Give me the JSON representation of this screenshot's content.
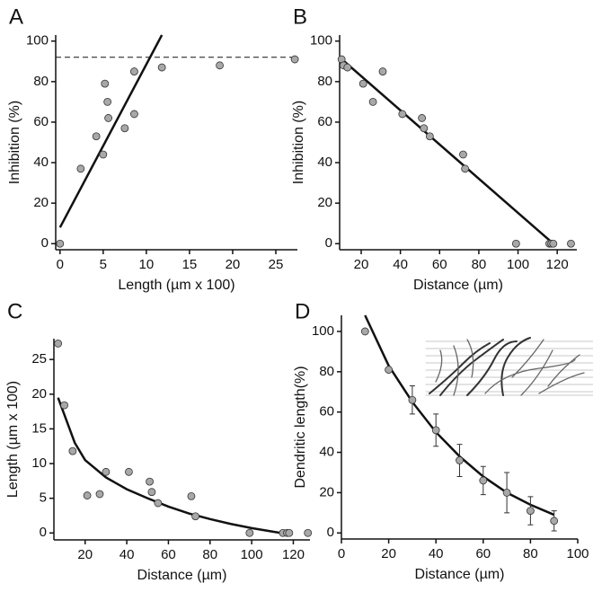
{
  "chart_data": [
    {
      "type": "scatter",
      "label": "A",
      "xlabel": "Length (µm x 100)",
      "ylabel": "Inhibition (%)",
      "xlim": [
        -0.5,
        27.5
      ],
      "xticks": [
        0,
        5,
        10,
        15,
        20,
        25
      ],
      "ylim": [
        -3,
        103
      ],
      "yticks": [
        0,
        20,
        40,
        60,
        80,
        100
      ],
      "color": "#a8a8a8",
      "hline": 92,
      "points": {
        "x": [
          0,
          2.4,
          4.2,
          5.0,
          5.2,
          5.5,
          5.6,
          7.5,
          8.6,
          8.6,
          11.8,
          18.5,
          27.2
        ],
        "y": [
          0,
          37,
          53,
          44,
          79,
          70,
          62,
          57,
          85,
          64,
          87,
          88,
          91
        ]
      },
      "fit": {
        "x": [
          0,
          11.8
        ],
        "y": [
          8,
          103
        ]
      }
    },
    {
      "type": "scatter",
      "label": "B",
      "xlabel": "Distance (µm)",
      "ylabel": "Inhibition (%)",
      "xlim": [
        9,
        130
      ],
      "xticks": [
        20,
        40,
        60,
        80,
        100,
        120
      ],
      "ylim": [
        -3,
        103
      ],
      "yticks": [
        0,
        20,
        40,
        60,
        80,
        100
      ],
      "color": "#a8a8a8",
      "points": {
        "x": [
          10,
          11,
          13,
          21,
          26,
          31,
          41,
          51,
          52,
          55,
          72,
          73,
          99,
          116,
          117,
          118,
          127
        ],
        "y": [
          91,
          88,
          87,
          79,
          70,
          85,
          64,
          62,
          57,
          53,
          44,
          37,
          0,
          0,
          0,
          0,
          0
        ]
      },
      "fit": {
        "x": [
          9,
          118
        ],
        "y": [
          92,
          0
        ]
      }
    },
    {
      "type": "scatter",
      "label": "C",
      "xlabel": "Distance (µm)",
      "ylabel": "Length (µm x 100)",
      "xlim": [
        5,
        128
      ],
      "xticks": [
        20,
        40,
        60,
        80,
        100,
        120
      ],
      "ylim": [
        -1,
        28
      ],
      "yticks": [
        0,
        5,
        10,
        15,
        20,
        25
      ],
      "color": "#a8a8a8",
      "points": {
        "x": [
          7,
          10,
          14,
          21,
          27,
          30,
          41,
          51,
          52,
          55,
          71,
          73,
          99,
          115,
          117,
          118,
          127
        ],
        "y": [
          27.3,
          18.4,
          11.8,
          5.4,
          5.6,
          8.8,
          8.8,
          7.4,
          5.9,
          4.3,
          5.3,
          2.4,
          0,
          0,
          0,
          0,
          0
        ]
      },
      "fit": {
        "x": [
          7,
          15,
          20,
          30,
          40,
          50,
          60,
          70,
          80,
          90,
          100,
          110,
          118
        ],
        "y": [
          19.5,
          13,
          10.5,
          8,
          6.3,
          5,
          3.8,
          2.8,
          2,
          1.3,
          0.7,
          0.2,
          -0.2
        ]
      }
    },
    {
      "type": "scatter",
      "label": "D",
      "xlabel": "Distance (µm)",
      "ylabel": "Dendritic length(%)",
      "xlim": [
        0,
        100
      ],
      "xticks": [
        0,
        20,
        40,
        60,
        80,
        100
      ],
      "ylim": [
        -3,
        108
      ],
      "yticks": [
        0,
        20,
        40,
        60,
        80,
        100
      ],
      "color": "#a8a8a8",
      "points": {
        "x": [
          10,
          20,
          30,
          40,
          50,
          60,
          70,
          80,
          90
        ],
        "y": [
          100,
          81,
          66,
          51,
          36,
          26,
          20,
          11,
          6
        ],
        "errors": [
          0,
          0,
          7,
          8,
          8,
          7,
          10,
          7,
          5
        ]
      },
      "fit": {
        "x": [
          10,
          20,
          30,
          40,
          50,
          60,
          70,
          80,
          90
        ],
        "y": [
          108,
          83,
          65,
          50,
          38,
          28,
          20,
          14,
          9
        ]
      }
    }
  ]
}
